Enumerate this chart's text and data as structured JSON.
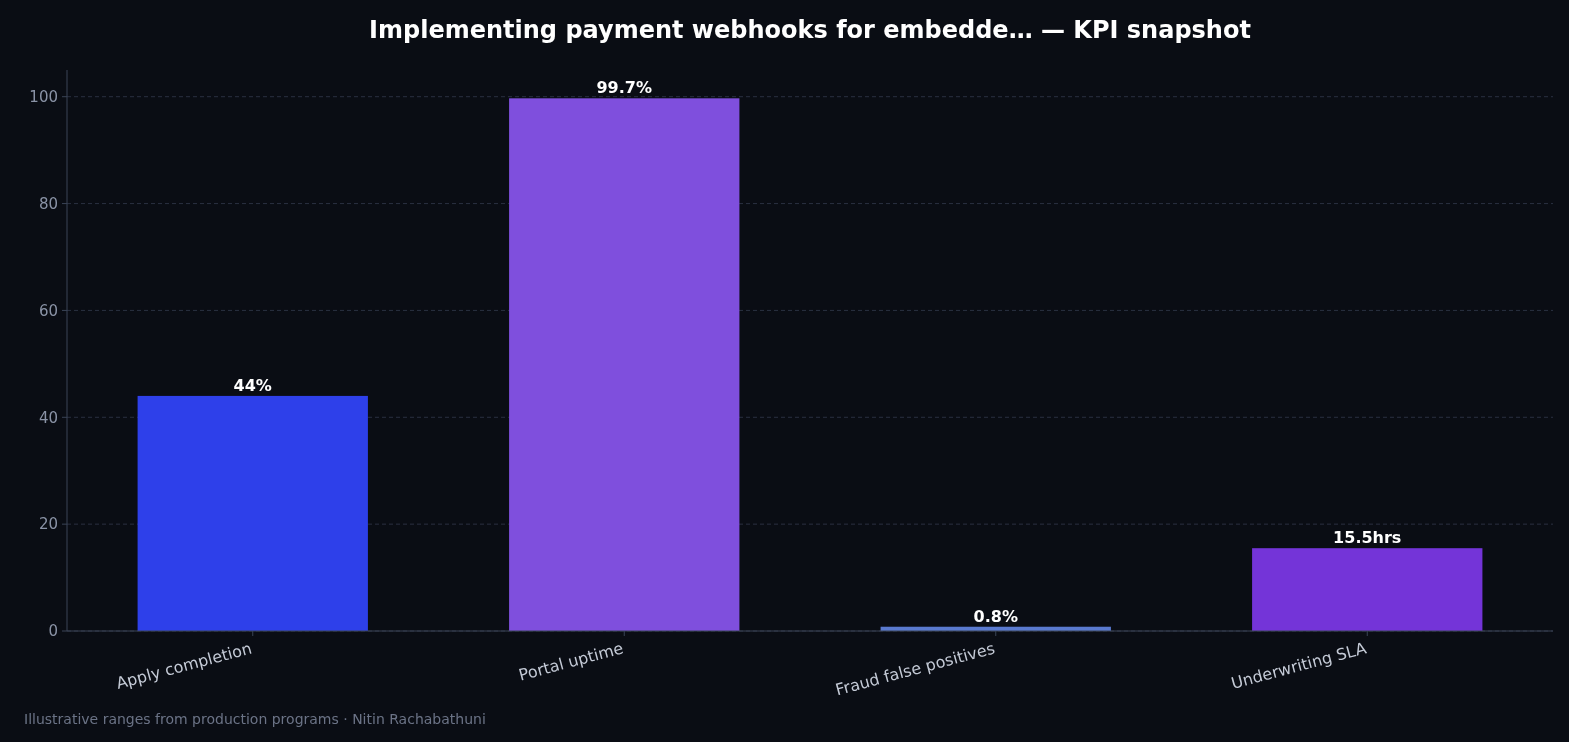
{
  "chart_data": {
    "type": "bar",
    "title": "Implementing payment webhooks for embedde… — KPI snapshot",
    "categories": [
      "Apply completion",
      "Portal uptime",
      "Fraud false positives",
      "Underwriting SLA"
    ],
    "values": [
      44,
      99.7,
      0.8,
      15.5
    ],
    "colors": [
      "#2e40ea",
      "#7f4fdd",
      "#5a7ad0",
      "#7434d8"
    ],
    "value_labels": [
      "44%",
      "99.7%",
      "0.8%",
      "15.5hrs"
    ],
    "ylim": [
      0,
      105
    ],
    "yticks": [
      0,
      20,
      40,
      60,
      80,
      100
    ],
    "grid": "y",
    "annotations": [
      "Illustrative ranges from production programs · Nitin Rachabathuni"
    ]
  }
}
